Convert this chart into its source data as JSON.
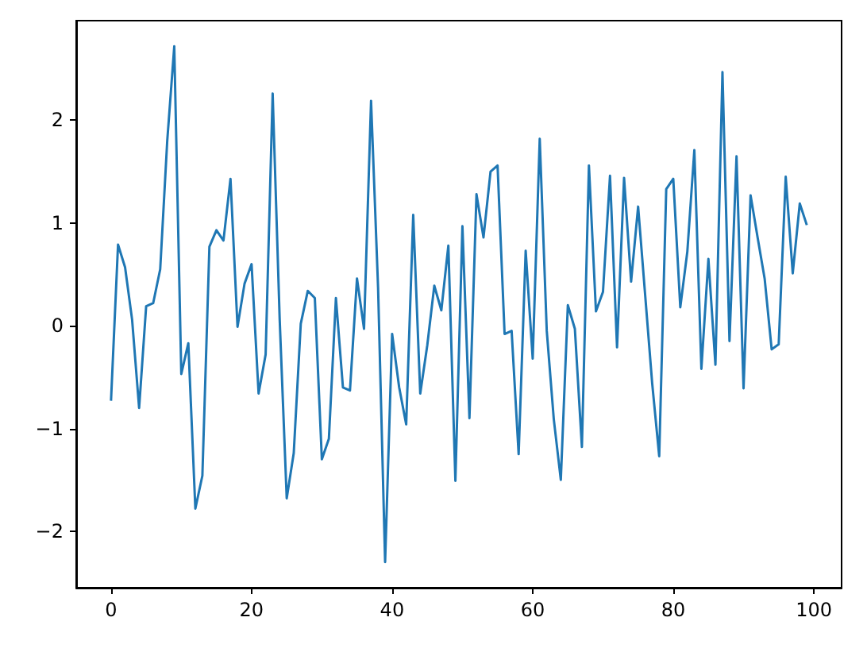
{
  "chart_data": {
    "type": "line",
    "x": [
      0,
      1,
      2,
      3,
      4,
      5,
      6,
      7,
      8,
      9,
      10,
      11,
      12,
      13,
      14,
      15,
      16,
      17,
      18,
      19,
      20,
      21,
      22,
      23,
      24,
      25,
      26,
      27,
      28,
      29,
      30,
      31,
      32,
      33,
      34,
      35,
      36,
      37,
      38,
      39,
      40,
      41,
      42,
      43,
      44,
      45,
      46,
      47,
      48,
      49,
      50,
      51,
      52,
      53,
      54,
      55,
      56,
      57,
      58,
      59,
      60,
      61,
      62,
      63,
      64,
      65,
      66,
      67,
      68,
      69,
      70,
      71,
      72,
      73,
      74,
      75,
      76,
      77,
      78,
      79,
      80,
      81,
      82,
      83,
      84,
      85,
      86,
      87,
      88,
      89,
      90,
      91,
      92,
      93,
      94,
      95,
      96,
      97,
      98,
      99
    ],
    "series": [
      {
        "color": "#1f77b4",
        "values": [
          -0.73,
          0.79,
          0.57,
          0.06,
          -0.8,
          0.19,
          0.22,
          0.55,
          1.8,
          2.72,
          -0.47,
          -0.17,
          -1.78,
          -1.46,
          0.77,
          0.93,
          0.83,
          1.43,
          -0.01,
          0.41,
          0.6,
          -0.66,
          -0.28,
          2.26,
          0.06,
          -1.68,
          -1.24,
          0.02,
          0.34,
          0.27,
          -1.3,
          -1.1,
          0.27,
          -0.6,
          -0.63,
          0.46,
          -0.03,
          2.19,
          0.37,
          -2.3,
          -0.08,
          -0.6,
          -0.96,
          1.08,
          -0.66,
          -0.19,
          0.39,
          0.15,
          0.78,
          -1.51,
          0.97,
          -0.9,
          1.28,
          0.86,
          1.5,
          1.56,
          -0.08,
          -0.05,
          -1.25,
          0.73,
          -0.32,
          1.82,
          -0.05,
          -0.91,
          -1.5,
          0.2,
          -0.03,
          -1.18,
          1.56,
          0.14,
          0.33,
          1.46,
          -0.21,
          1.44,
          0.43,
          1.16,
          0.3,
          -0.56,
          -1.27,
          1.33,
          1.43,
          0.18,
          0.72,
          1.71,
          -0.42,
          0.65,
          -0.38,
          2.47,
          -0.15,
          1.65,
          -0.61,
          1.27,
          0.86,
          0.46,
          -0.23,
          -0.18,
          1.45,
          0.51,
          1.19,
          0.98
        ]
      }
    ],
    "xlim": [
      -4.95,
      103.95
    ],
    "ylim": [
      -2.55,
      2.97
    ],
    "xticks": [
      0,
      20,
      40,
      60,
      80,
      100
    ],
    "yticks": [
      -2,
      -1,
      0,
      1,
      2
    ],
    "grid": false
  }
}
